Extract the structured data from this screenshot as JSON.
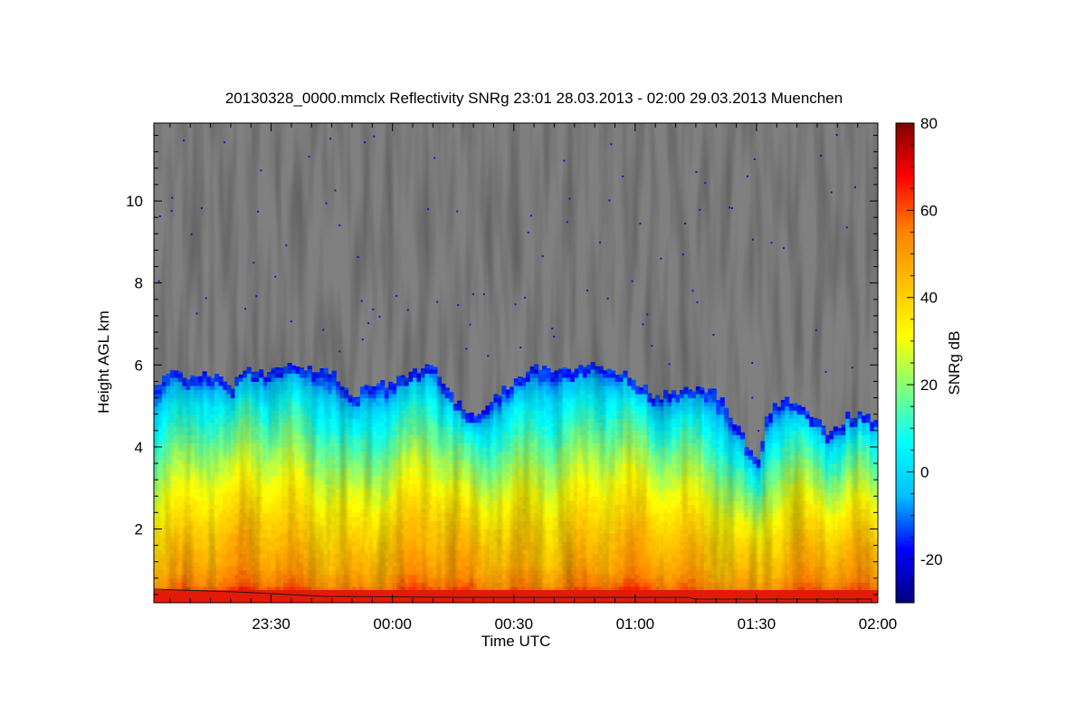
{
  "chart_data": {
    "type": "heatmap",
    "title": "20130328_0000.mmclx Reflectivity SNRg   23:01 28.03.2013 - 02:00 29.03.2013 Muenchen",
    "xlabel": "Time UTC",
    "ylabel": "Height AGL km",
    "colorbar_label": "SNRg dB",
    "x_range_minutes": [
      -59,
      120
    ],
    "x_ticks": [
      {
        "label": "23:30",
        "minutes": -30
      },
      {
        "label": "00:00",
        "minutes": 0
      },
      {
        "label": "00:30",
        "minutes": 30
      },
      {
        "label": "01:00",
        "minutes": 60
      },
      {
        "label": "01:30",
        "minutes": 90
      },
      {
        "label": "02:00",
        "minutes": 120
      }
    ],
    "y_range": [
      0.2,
      11.9
    ],
    "y_ticks": [
      2,
      4,
      6,
      8,
      10
    ],
    "colorbar_range": [
      -30,
      80
    ],
    "colorbar_ticks": [
      -20,
      0,
      20,
      40,
      60,
      80
    ],
    "colormap": [
      "#00007f",
      "#0000ff",
      "#00bfff",
      "#00ffff",
      "#7fff7f",
      "#ffff00",
      "#ffbf00",
      "#ff7f00",
      "#ff0000",
      "#7f0000"
    ],
    "background_color": "#808080",
    "echo_top_km": [
      {
        "t": -59,
        "h": 5.4
      },
      {
        "t": -55,
        "h": 5.9
      },
      {
        "t": -50,
        "h": 5.6
      },
      {
        "t": -45,
        "h": 5.8
      },
      {
        "t": -40,
        "h": 5.5
      },
      {
        "t": -35,
        "h": 5.9
      },
      {
        "t": -30,
        "h": 5.8
      },
      {
        "t": -25,
        "h": 6.0
      },
      {
        "t": -20,
        "h": 5.9
      },
      {
        "t": -15,
        "h": 5.8
      },
      {
        "t": -10,
        "h": 5.2
      },
      {
        "t": -5,
        "h": 5.6
      },
      {
        "t": 0,
        "h": 5.5
      },
      {
        "t": 5,
        "h": 5.9
      },
      {
        "t": 10,
        "h": 5.9
      },
      {
        "t": 15,
        "h": 5.2
      },
      {
        "t": 20,
        "h": 4.8
      },
      {
        "t": 25,
        "h": 5.2
      },
      {
        "t": 30,
        "h": 5.6
      },
      {
        "t": 35,
        "h": 5.9
      },
      {
        "t": 40,
        "h": 5.9
      },
      {
        "t": 45,
        "h": 5.9
      },
      {
        "t": 50,
        "h": 6.0
      },
      {
        "t": 55,
        "h": 5.9
      },
      {
        "t": 60,
        "h": 5.6
      },
      {
        "t": 65,
        "h": 5.2
      },
      {
        "t": 70,
        "h": 5.4
      },
      {
        "t": 75,
        "h": 5.4
      },
      {
        "t": 80,
        "h": 5.3
      },
      {
        "t": 85,
        "h": 4.6
      },
      {
        "t": 88,
        "h": 4.0
      },
      {
        "t": 90,
        "h": 3.6
      },
      {
        "t": 93,
        "h": 4.9
      },
      {
        "t": 98,
        "h": 5.2
      },
      {
        "t": 103,
        "h": 4.8
      },
      {
        "t": 108,
        "h": 4.3
      },
      {
        "t": 113,
        "h": 4.8
      },
      {
        "t": 120,
        "h": 4.7
      }
    ],
    "snr_profile_db": [
      {
        "h": 0.3,
        "v": 65
      },
      {
        "h": 0.6,
        "v": 55
      },
      {
        "h": 1.0,
        "v": 48
      },
      {
        "h": 2.0,
        "v": 40
      },
      {
        "h": 3.0,
        "v": 30
      },
      {
        "h": 4.0,
        "v": 18
      },
      {
        "h": 5.0,
        "v": 5
      },
      {
        "h": 5.8,
        "v": -15
      }
    ]
  }
}
